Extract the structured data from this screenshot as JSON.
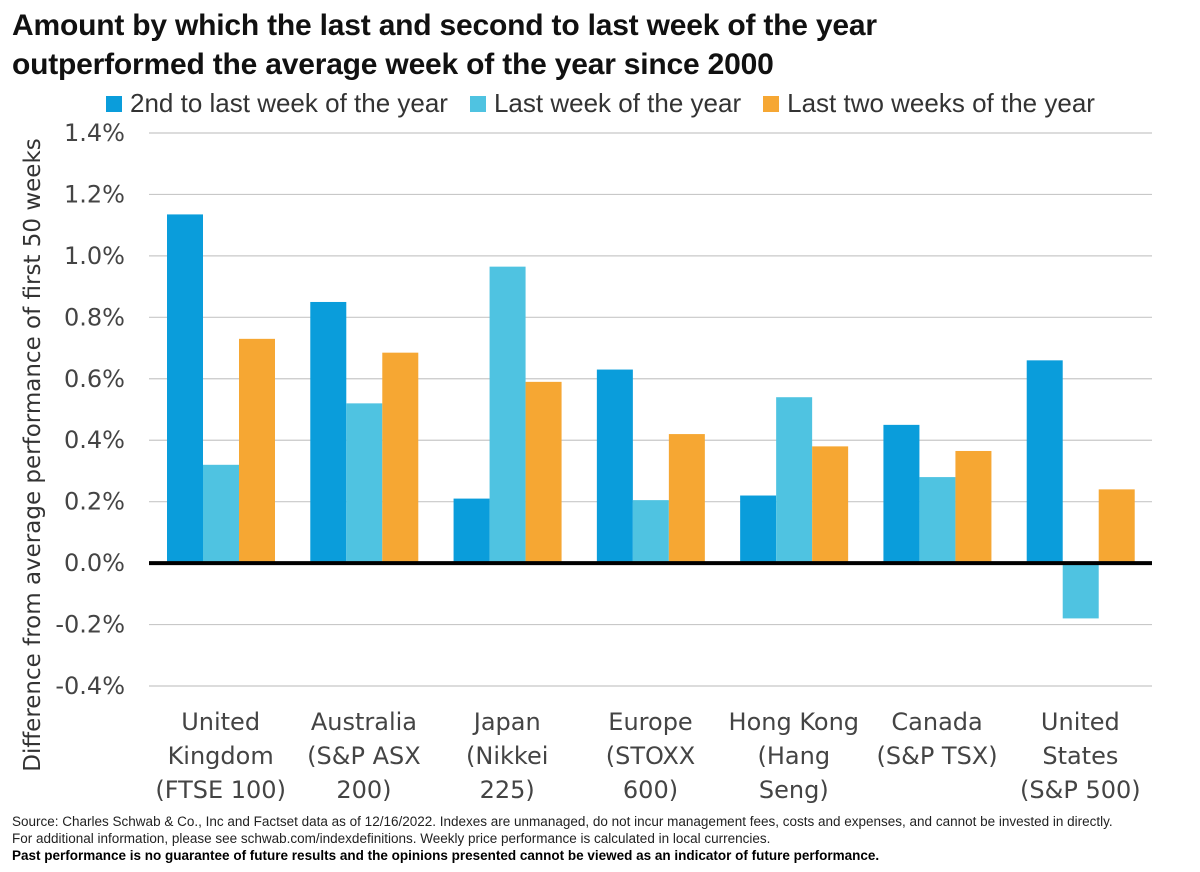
{
  "title_lines": [
    "Amount by which the last and second to last week of the year",
    "outperformed the average week of the year since 2000"
  ],
  "colors": {
    "series1": "#0a9ddb",
    "series2": "#4fc3e1",
    "series3": "#f6a733",
    "grid": "#c8c8c8",
    "zero_line": "#000000"
  },
  "chart_data": {
    "type": "bar",
    "title": "Amount by which the last and second to last week of the year outperformed the average week of the year since 2000",
    "ylabel": "Difference from average performance of first 50 weeks",
    "xlabel": "",
    "ylim": [
      -0.4,
      1.4
    ],
    "yticks": [
      "1.4%",
      "1.2%",
      "1.0%",
      "0.8%",
      "0.6%",
      "0.4%",
      "0.2%",
      "0.0%",
      "-0.2%",
      "-0.4%"
    ],
    "legend_position": "top",
    "grid": true,
    "categories": [
      [
        "United",
        "Kingdom",
        "(FTSE 100)"
      ],
      [
        "Australia",
        "(S&P ASX",
        "200)"
      ],
      [
        "Japan",
        "(Nikkei",
        "225)"
      ],
      [
        "Europe",
        "(STOXX",
        "600)"
      ],
      [
        "Hong Kong",
        "(Hang",
        "Seng)"
      ],
      [
        "Canada",
        "(S&P TSX)"
      ],
      [
        "United",
        "States",
        "(S&P 500)"
      ]
    ],
    "series": [
      {
        "name": "2nd to last week of the year",
        "values": [
          1.135,
          0.85,
          0.21,
          0.63,
          0.22,
          0.45,
          0.66
        ]
      },
      {
        "name": "Last week of the year",
        "values": [
          0.32,
          0.52,
          0.965,
          0.205,
          0.54,
          0.28,
          -0.18
        ]
      },
      {
        "name": "Last two weeks of the year",
        "values": [
          0.73,
          0.685,
          0.59,
          0.42,
          0.38,
          0.365,
          0.24
        ]
      }
    ]
  },
  "footer": {
    "line1": "Source: Charles Schwab & Co., Inc and Factset data as of 12/16/2022.   Indexes are unmanaged, do not incur management fees, costs and expenses, and cannot be invested in directly.",
    "line2": "For additional information, please see schwab.com/indexdefinitions.  Weekly price performance is calculated in local currencies.",
    "line3": "Past performance is no guarantee of future results and the opinions presented cannot be viewed as an indicator of future performance."
  }
}
